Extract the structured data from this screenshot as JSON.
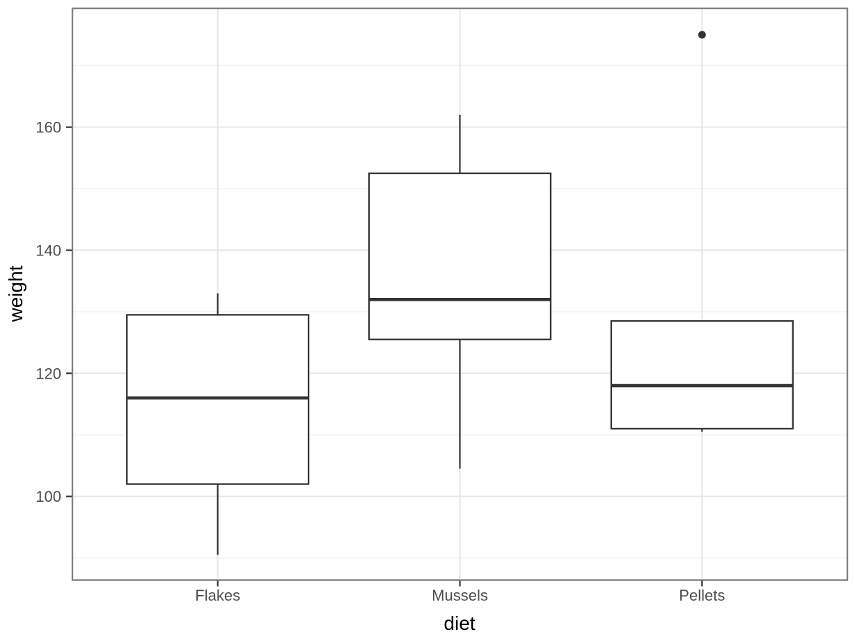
{
  "chart_data": {
    "type": "boxplot",
    "title": "",
    "xlabel": "diet",
    "ylabel": "weight",
    "categories": [
      "Flakes",
      "Mussels",
      "Pellets"
    ],
    "series": [
      {
        "category": "Flakes",
        "min": 90.5,
        "q1": 102,
        "median": 116,
        "q3": 129.5,
        "max": 133,
        "outliers": []
      },
      {
        "category": "Mussels",
        "min": 104.5,
        "q1": 125.5,
        "median": 132,
        "q3": 152.5,
        "max": 162,
        "outliers": []
      },
      {
        "category": "Pellets",
        "min": 110.5,
        "q1": 111,
        "median": 118,
        "q3": 128.5,
        "max": 128.5,
        "outliers": [
          175
        ]
      }
    ],
    "y_axis": {
      "ticks_major": [
        100,
        120,
        140,
        160
      ],
      "ticks_minor": [
        90,
        110,
        130,
        150,
        170
      ],
      "range": [
        86.4,
        179.3
      ]
    },
    "x_axis": {
      "domain": [
        0.4,
        3.6
      ],
      "box_width_fraction": 0.75
    },
    "grid": true,
    "legend": false,
    "style": {
      "background": "#ffffff",
      "panel_border": "#818181",
      "grid_major": "#e6e6e6",
      "grid_minor": "#f2f2f2",
      "box_stroke": "#333333",
      "box_fill": "#ffffff",
      "tick_color": "#333333",
      "tick_label_color": "#4d4d4d",
      "axis_title_color": "#000000",
      "outlier_color": "#333333"
    }
  }
}
